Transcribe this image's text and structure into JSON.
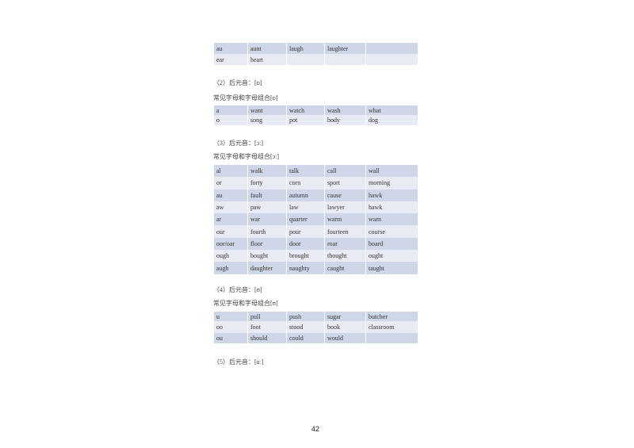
{
  "table_a_continued": [
    [
      "au",
      "aunt",
      "laugh",
      "laughter",
      ""
    ],
    [
      "ear",
      "heart",
      "",
      "",
      ""
    ]
  ],
  "section2": {
    "heading": "（2）后元音：[ɒ]",
    "subheading": "常见字母和字母组合[ɒ]",
    "rows": [
      [
        "a",
        "want",
        "watch",
        "wash",
        "what"
      ],
      [
        "o",
        "song",
        "pot",
        "body",
        "dog"
      ]
    ]
  },
  "section3": {
    "heading": "（3）后元音：[ɔː]",
    "subheading": "常见字母和字母组合[ɔː]",
    "rows": [
      [
        "al",
        "walk",
        "talk",
        "call",
        "wall"
      ],
      [
        "or",
        "forty",
        "corn",
        "sport",
        "morning"
      ],
      [
        "au",
        "fault",
        "autumn",
        "cause",
        "hawk"
      ],
      [
        "aw",
        "paw",
        "law",
        "lawyer",
        "hawk"
      ],
      [
        "ar",
        "war",
        "quarter",
        "warm",
        "warn"
      ],
      [
        "our",
        "fourth",
        "pour",
        "fourteen",
        "course"
      ],
      [
        "oor/oar",
        "floor",
        "door",
        "roar",
        "board"
      ],
      [
        "ough",
        "bought",
        "brought",
        "thought",
        "ought"
      ],
      [
        "augh",
        "daughter",
        "naughty",
        "caught",
        "taught"
      ]
    ]
  },
  "section4": {
    "heading": "（4）后元音：[ʊ]",
    "subheading": "常见字母和字母组合[ʊ]",
    "rows": [
      [
        "u",
        "pull",
        "push",
        "sugar",
        "butcher"
      ],
      [
        "oo",
        "foot",
        "stood",
        "book",
        "classroom"
      ],
      [
        "ou",
        "should",
        "could",
        "would",
        ""
      ]
    ]
  },
  "section5": {
    "heading": "（5）后元音：[uː]"
  },
  "page_number": "42"
}
